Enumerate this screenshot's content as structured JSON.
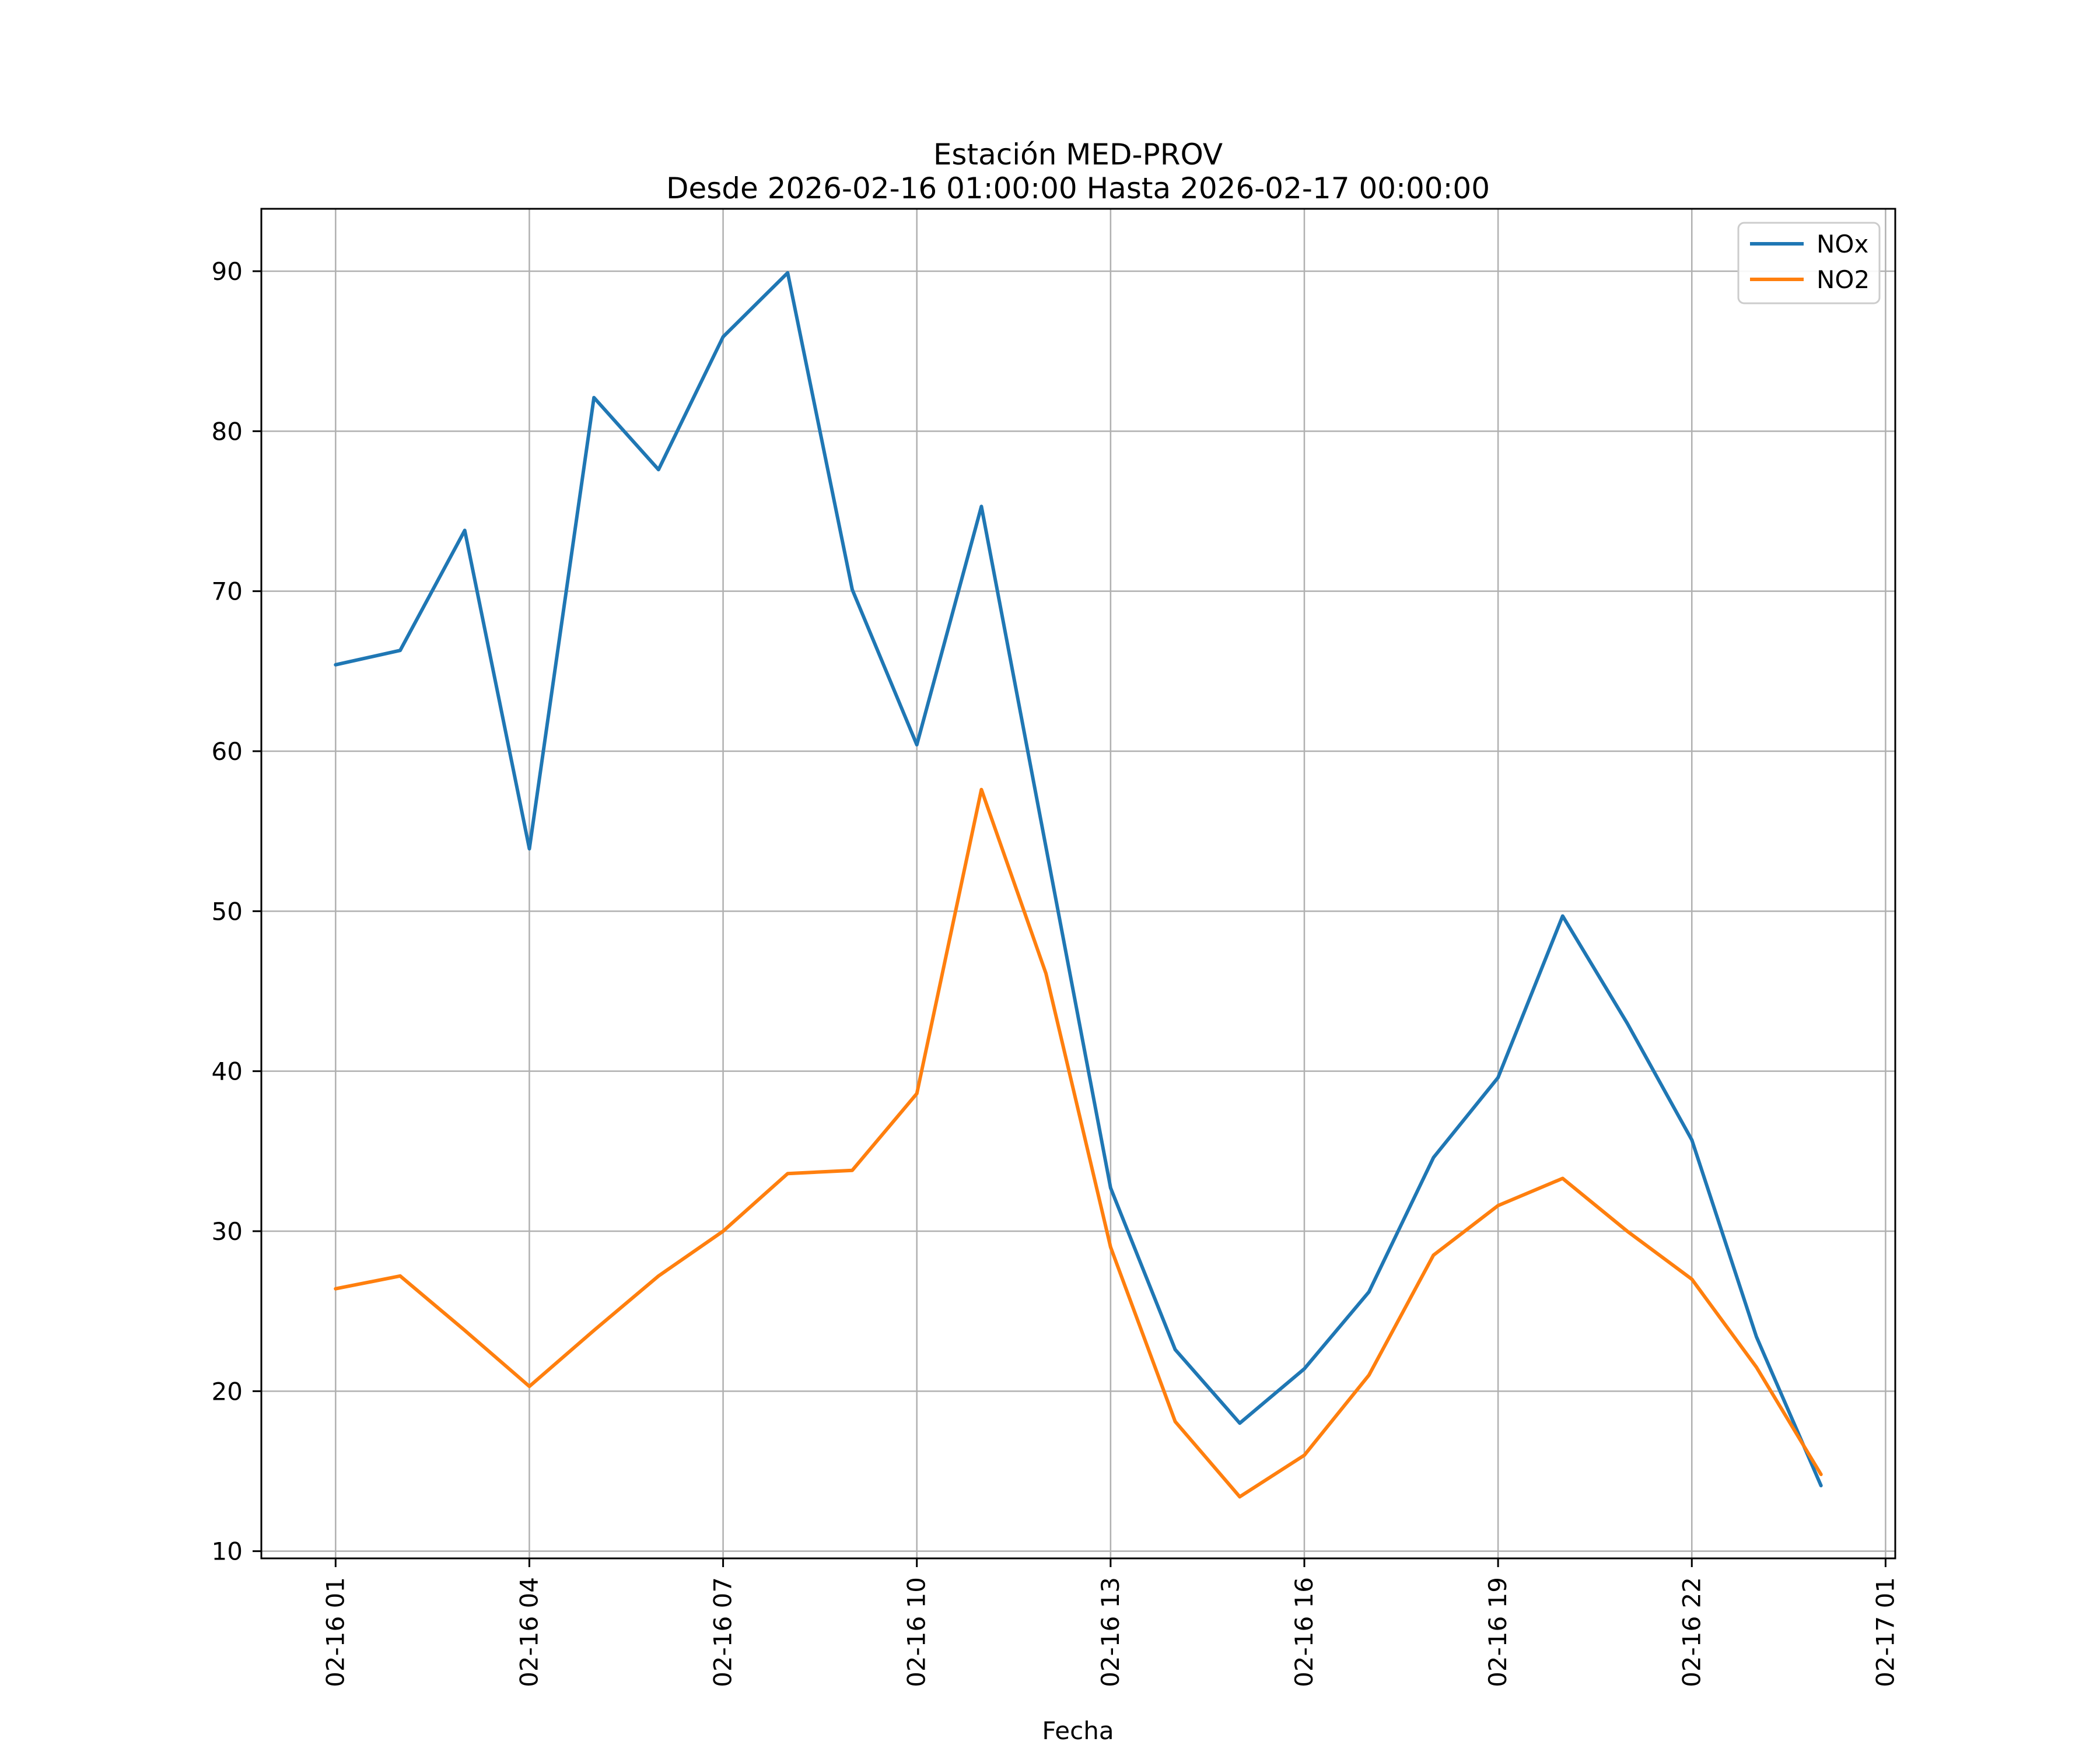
{
  "figure": {
    "title": "Estación MED-PROV",
    "subtitle": "Desde 2026-02-16 01:00:00 Hasta 2026-02-17 00:00:00"
  },
  "chart_data": {
    "type": "line",
    "title": "Estación MED-PROV",
    "subtitle": "Desde 2026-02-16 01:00:00 Hasta 2026-02-17 00:00:00",
    "xlabel": "Fecha",
    "ylabel": "",
    "grid": true,
    "legend_position": "upper right",
    "background": "#ffffff",
    "grid_color": "#b0b0b0",
    "spine_color": "#000000",
    "legend_border_color": "#cccccc",
    "x_hours": [
      1,
      2,
      3,
      4,
      5,
      6,
      7,
      8,
      9,
      10,
      11,
      12,
      13,
      14,
      15,
      16,
      17,
      18,
      19,
      20,
      21,
      22,
      23,
      24
    ],
    "x_labels": [
      "02-16 01:00",
      "02-16 02:00",
      "02-16 03:00",
      "02-16 04:00",
      "02-16 05:00",
      "02-16 06:00",
      "02-16 07:00",
      "02-16 08:00",
      "02-16 09:00",
      "02-16 10:00",
      "02-16 11:00",
      "02-16 12:00",
      "02-16 13:00",
      "02-16 14:00",
      "02-16 15:00",
      "02-16 16:00",
      "02-16 17:00",
      "02-16 18:00",
      "02-16 19:00",
      "02-16 20:00",
      "02-16 21:00",
      "02-16 22:00",
      "02-16 23:00",
      "02-17 00:00"
    ],
    "series": [
      {
        "name": "NOx",
        "color": "#1f77b4",
        "values": [
          65.4,
          66.3,
          73.8,
          53.9,
          82.1,
          77.6,
          85.9,
          89.9,
          70.1,
          60.4,
          75.3,
          54.0,
          32.7,
          22.6,
          18.0,
          21.4,
          26.2,
          34.6,
          39.6,
          49.7,
          43.0,
          35.7,
          23.4,
          14.1
        ]
      },
      {
        "name": "NO2",
        "color": "#ff7f0e",
        "values": [
          26.4,
          27.2,
          23.8,
          20.3,
          23.8,
          27.2,
          30.0,
          33.6,
          33.8,
          38.6,
          57.6,
          46.1,
          29.0,
          18.1,
          13.4,
          16.0,
          21.0,
          28.5,
          31.6,
          33.3,
          30.0,
          27.0,
          21.5,
          14.8
        ]
      }
    ],
    "xticks": {
      "hours": [
        1,
        4,
        7,
        10,
        13,
        16,
        19,
        22,
        25
      ],
      "labels": [
        "02-16 01",
        "02-16 04",
        "02-16 07",
        "02-16 10",
        "02-16 13",
        "02-16 16",
        "02-16 19",
        "02-16 22",
        "02-17 01"
      ]
    },
    "yticks": [
      10,
      20,
      30,
      40,
      50,
      60,
      70,
      80,
      90
    ],
    "xlim": [
      -0.15,
      25.15
    ],
    "ylim": [
      9.55,
      93.9
    ]
  }
}
